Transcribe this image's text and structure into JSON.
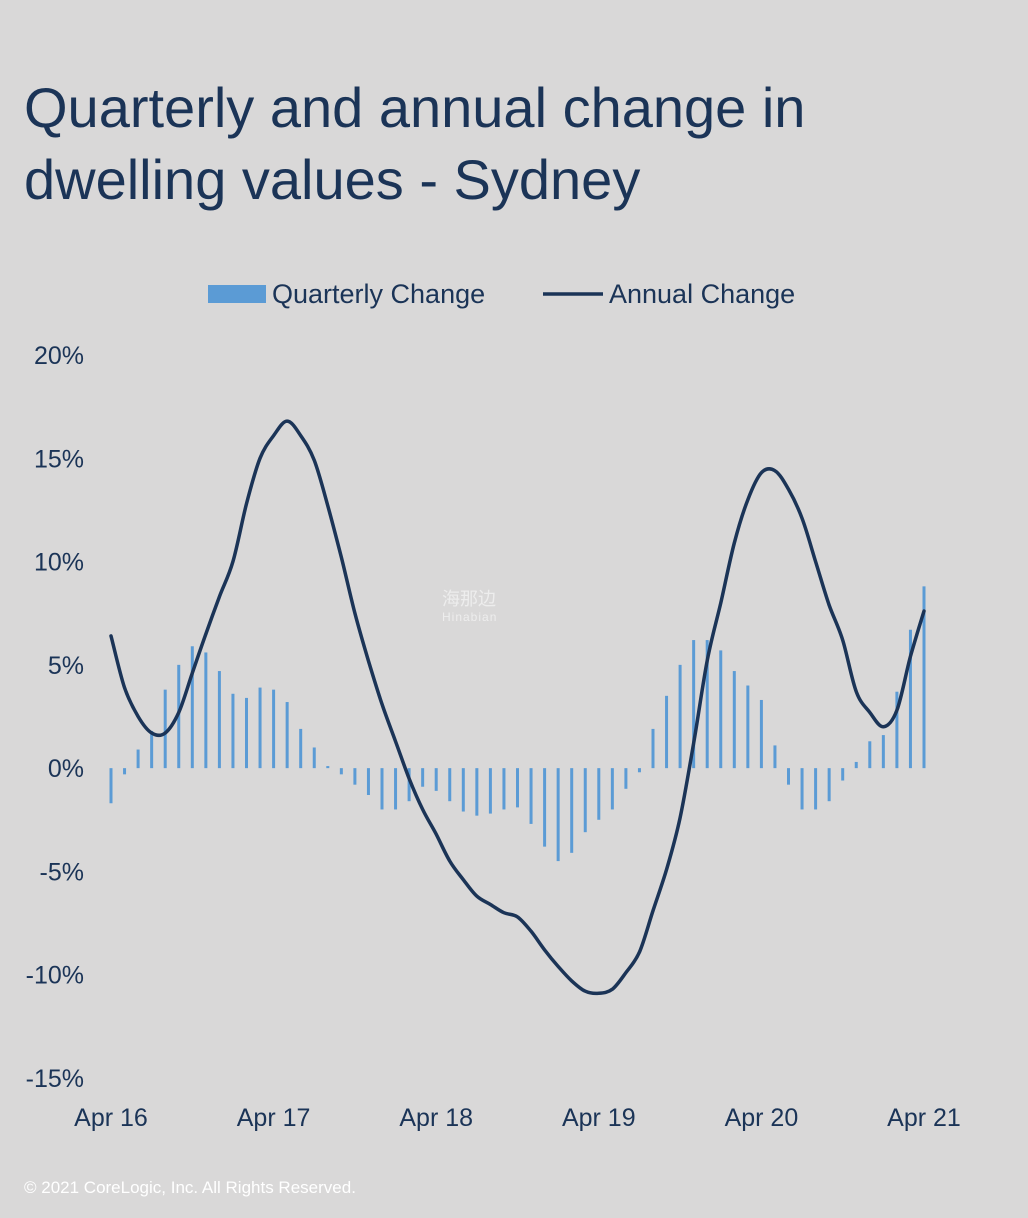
{
  "title": {
    "line1": "Quarterly and annual change in",
    "line2": "dwelling values - Sydney"
  },
  "footer": "© 2021 CoreLogic,  Inc. All Rights  Reserved.",
  "watermark": {
    "cn": "海那边",
    "en": "Hinabian"
  },
  "colors": {
    "bar": "#5b9bd5",
    "line": "#1b3457",
    "background": "#d9d8d8",
    "text": "#1b3457"
  },
  "chart_data": {
    "type": "bar+line",
    "title": "Quarterly and annual change in dwelling values - Sydney",
    "legend": {
      "position": "top-center",
      "entries": [
        "Quarterly Change",
        "Annual Change"
      ]
    },
    "y_axis": {
      "range": [
        -15,
        20
      ],
      "ticks": [
        20,
        15,
        10,
        5,
        0,
        -5,
        -10,
        -15
      ],
      "tick_labels": [
        "20%",
        "15%",
        "10%",
        "5%",
        "0%",
        "-5%",
        "-10%",
        "-15%"
      ]
    },
    "x_axis": {
      "range": [
        0,
        60
      ],
      "ticks": [
        0,
        12,
        24,
        36,
        48,
        60
      ],
      "tick_labels": [
        "Apr 16",
        "Apr 17",
        "Apr 18",
        "Apr 19",
        "Apr 20",
        "Apr 21"
      ]
    },
    "series": [
      {
        "name": "Quarterly Change",
        "type": "bar",
        "x": [
          0,
          1,
          2,
          3,
          4,
          5,
          6,
          7,
          8,
          9,
          10,
          11,
          12,
          13,
          14,
          15,
          16,
          17,
          18,
          19,
          20,
          21,
          22,
          23,
          24,
          25,
          26,
          27,
          28,
          29,
          30,
          31,
          32,
          33,
          34,
          35,
          36,
          37,
          38,
          39,
          40,
          41,
          42,
          43,
          44,
          45,
          46,
          47,
          48,
          49,
          50,
          51,
          52,
          53,
          54,
          55,
          56,
          57,
          58,
          59,
          60
        ],
        "values": [
          -1.7,
          -0.3,
          0.9,
          1.8,
          3.8,
          5.0,
          5.9,
          5.6,
          4.7,
          3.6,
          3.4,
          3.9,
          3.8,
          3.2,
          1.9,
          1.0,
          0.1,
          -0.3,
          -0.8,
          -1.3,
          -2.0,
          -2.0,
          -1.6,
          -0.9,
          -1.1,
          -1.6,
          -2.1,
          -2.3,
          -2.2,
          -2.0,
          -1.9,
          -2.7,
          -3.8,
          -4.5,
          -4.1,
          -3.1,
          -2.5,
          -2.0,
          -1.0,
          -0.2,
          1.9,
          3.5,
          5.0,
          6.2,
          6.2,
          5.7,
          4.7,
          4.0,
          3.3,
          1.1,
          -0.8,
          -2.0,
          -2.0,
          -1.6,
          -0.6,
          0.3,
          1.3,
          1.6,
          3.7,
          6.7,
          8.8
        ]
      },
      {
        "name": "Annual Change",
        "type": "line",
        "x": [
          0,
          1,
          2,
          3,
          4,
          5,
          6,
          7,
          8,
          9,
          10,
          11,
          12,
          13,
          14,
          15,
          16,
          17,
          18,
          19,
          20,
          21,
          22,
          23,
          24,
          25,
          26,
          27,
          28,
          29,
          30,
          31,
          32,
          33,
          34,
          35,
          36,
          37,
          38,
          39,
          40,
          41,
          42,
          43,
          44,
          45,
          46,
          47,
          48,
          49,
          50,
          51,
          52,
          53,
          54,
          55,
          56,
          57,
          58,
          59,
          60
        ],
        "values": [
          6.4,
          3.9,
          2.5,
          1.7,
          1.7,
          2.7,
          4.6,
          6.5,
          8.3,
          10.0,
          12.8,
          15.0,
          16.1,
          16.8,
          16.1,
          14.9,
          12.7,
          10.2,
          7.5,
          5.2,
          3.1,
          1.3,
          -0.5,
          -2.0,
          -3.2,
          -4.5,
          -5.4,
          -6.2,
          -6.6,
          -7.0,
          -7.2,
          -7.9,
          -8.8,
          -9.6,
          -10.3,
          -10.8,
          -10.9,
          -10.7,
          -9.9,
          -8.9,
          -6.9,
          -4.9,
          -2.4,
          1.2,
          5.2,
          8.0,
          10.9,
          13.0,
          14.3,
          14.4,
          13.5,
          12.1,
          10.0,
          7.9,
          6.2,
          3.7,
          2.7,
          2.0,
          2.8,
          5.4,
          7.6
        ]
      }
    ]
  }
}
